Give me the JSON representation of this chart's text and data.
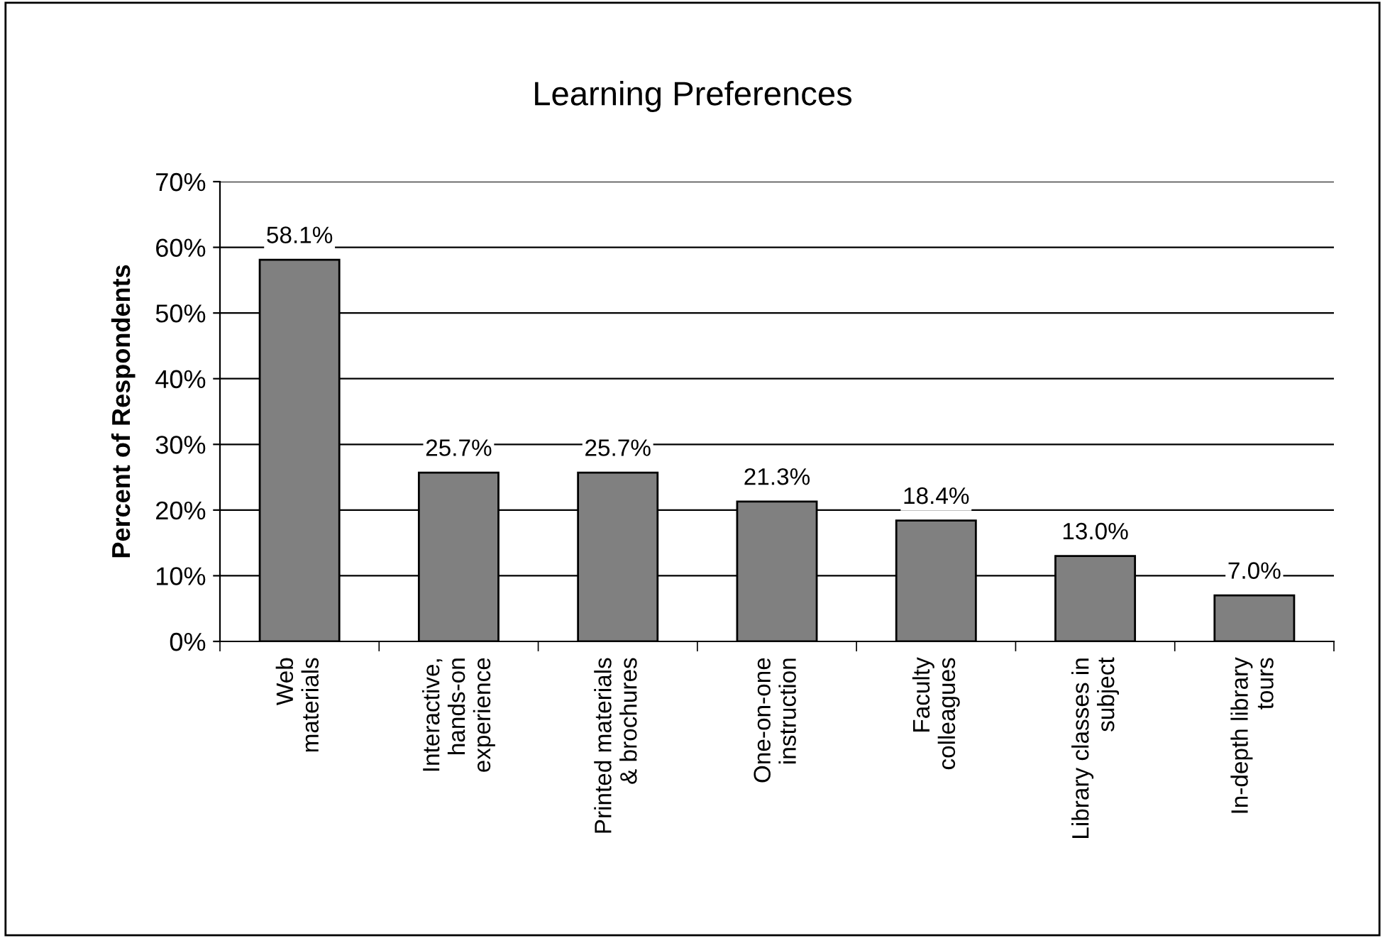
{
  "chart_data": {
    "type": "bar",
    "title": "Learning Preferences",
    "ylabel": "Percent of Respondents",
    "categories": [
      "Web\nmaterials",
      "Interactive,\nhands-on\nexperience",
      "Printed materials\n& brochures",
      "One-on-one\ninstruction",
      "Faculty\ncolleagues",
      "Library classes in\nsubject",
      "In-depth library\ntours"
    ],
    "values": [
      58.1,
      25.7,
      25.7,
      21.3,
      18.4,
      13.0,
      7.0
    ],
    "value_labels": [
      "58.1%",
      "25.7%",
      "25.7%",
      "21.3%",
      "18.4%",
      "13.0%",
      "7.0%"
    ],
    "color": "#808080",
    "ylim": [
      0,
      70
    ],
    "yticks": [
      {
        "value": 0,
        "label": "0%"
      },
      {
        "value": 10,
        "label": "10%"
      },
      {
        "value": 20,
        "label": "20%"
      },
      {
        "value": 30,
        "label": "30%"
      },
      {
        "value": 40,
        "label": "40%"
      },
      {
        "value": 50,
        "label": "50%"
      },
      {
        "value": 60,
        "label": "60%"
      },
      {
        "value": 70,
        "label": "70%"
      }
    ],
    "grid": "y",
    "legend": false
  }
}
